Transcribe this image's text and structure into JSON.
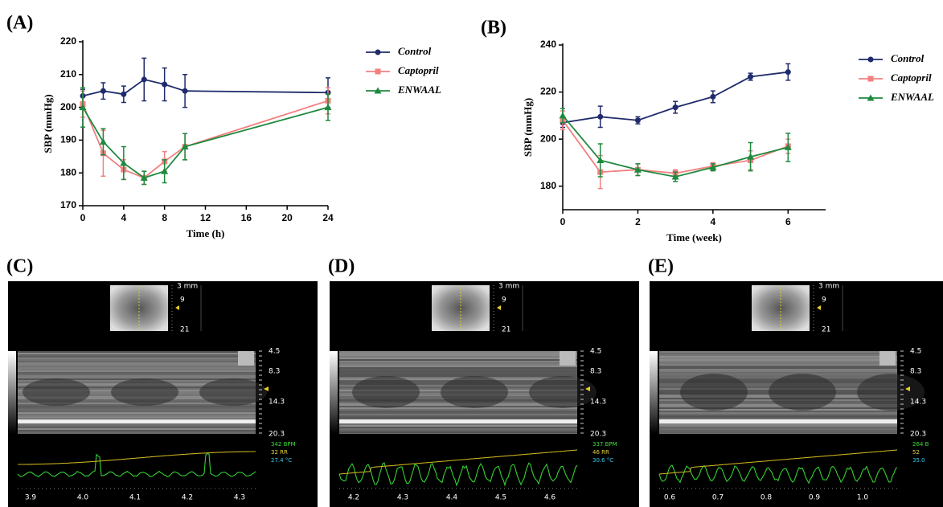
{
  "chart_data": [
    {
      "type": "line",
      "panel_label": "(A)",
      "x_label": "Time (h)",
      "y_label": "SBP (mmHg)",
      "x": [
        0,
        2,
        4,
        6,
        8,
        10,
        24
      ],
      "xlim": [
        0,
        24
      ],
      "xticks": [
        0,
        4,
        8,
        12,
        16,
        20,
        24
      ],
      "ylim": [
        170,
        220
      ],
      "yticks": [
        170,
        180,
        190,
        200,
        210,
        220
      ],
      "legend": "right",
      "series": [
        {
          "name": "Control",
          "color": "#1f2b6b",
          "marker": "circle",
          "values": [
            203.5,
            205,
            204,
            208.5,
            207,
            205,
            204.5
          ],
          "errors": [
            2,
            2.5,
            2.5,
            6.5,
            5,
            5,
            4.5
          ]
        },
        {
          "name": "Captopril",
          "color": "#f28080",
          "marker": "square",
          "values": [
            201,
            186,
            181,
            178.5,
            183.5,
            188,
            202
          ],
          "errors": [
            4,
            7,
            3,
            2,
            3,
            4,
            4
          ]
        },
        {
          "name": "ENWAAL",
          "color": "#1e8a3e",
          "marker": "triangle",
          "values": [
            200,
            189.5,
            183,
            178.5,
            180.5,
            188,
            200
          ],
          "errors": [
            6,
            4,
            5,
            2,
            3.5,
            4,
            4
          ]
        }
      ]
    },
    {
      "type": "line",
      "panel_label": "(B)",
      "x_label": "Time (week)",
      "y_label": "SBP (mmHg)",
      "x": [
        0,
        1,
        2,
        3,
        4,
        5,
        6
      ],
      "xlim": [
        0,
        7
      ],
      "xticks": [
        0,
        2,
        4,
        6
      ],
      "ylim": [
        170,
        240
      ],
      "yticks": [
        180,
        200,
        220,
        240
      ],
      "legend": "right",
      "series": [
        {
          "name": "Control",
          "color": "#1f2b6b",
          "marker": "circle",
          "values": [
            207,
            209.5,
            208,
            213.5,
            218,
            226.5,
            228.5
          ],
          "errors": [
            2,
            4.5,
            1.5,
            2.5,
            2.5,
            1.5,
            3.5
          ]
        },
        {
          "name": "Captopril",
          "color": "#f28080",
          "marker": "square",
          "values": [
            208,
            186,
            187,
            185.5,
            188.5,
            191,
            197
          ],
          "errors": [
            4,
            7,
            2.5,
            1.5,
            1.5,
            4,
            3
          ]
        },
        {
          "name": "ENWAAL",
          "color": "#1e8a3e",
          "marker": "triangle",
          "values": [
            210,
            191,
            187,
            184,
            188,
            192.5,
            196.5
          ],
          "errors": [
            3,
            7,
            2.5,
            2,
            1.5,
            6,
            6
          ]
        }
      ]
    }
  ],
  "ultrasound": [
    {
      "panel_label": "(C)",
      "depth_scale": [
        "3 mm",
        "9",
        "21"
      ],
      "mmode_scale": [
        "4.5",
        "8.3",
        "14.3",
        "20.3"
      ],
      "readouts": [
        {
          "text": "342 BPM",
          "color": "#3ddc3d"
        },
        {
          "text": "32 RR",
          "color": "#e8d23a"
        },
        {
          "text": "27.4 °C",
          "color": "#3cc8e8"
        }
      ],
      "time_ticks": [
        "3.9",
        "4.0",
        "4.1",
        "4.2",
        "4.3"
      ]
    },
    {
      "panel_label": "(D)",
      "depth_scale": [
        "3 mm",
        "9",
        "21"
      ],
      "mmode_scale": [
        "4.5",
        "8.3",
        "14.3",
        "20.3"
      ],
      "readouts": [
        {
          "text": "337 BPM",
          "color": "#3ddc3d"
        },
        {
          "text": "46 RR",
          "color": "#e8d23a"
        },
        {
          "text": "30.6 °C",
          "color": "#3cc8e8"
        }
      ],
      "time_ticks": [
        "4.2",
        "4.3",
        "4.4",
        "4.5",
        "4.6"
      ]
    },
    {
      "panel_label": "(E)",
      "depth_scale": [
        "3 mm",
        "9",
        "21"
      ],
      "mmode_scale": [
        "4.5",
        "8.3",
        "14.3",
        "20.3"
      ],
      "readouts": [
        {
          "text": "264 B",
          "color": "#3ddc3d"
        },
        {
          "text": "52",
          "color": "#e8d23a"
        },
        {
          "text": "35.0",
          "color": "#3cc8e8"
        }
      ],
      "time_ticks": [
        "0.6",
        "0.7",
        "0.8",
        "0.9",
        "1.0"
      ]
    }
  ]
}
